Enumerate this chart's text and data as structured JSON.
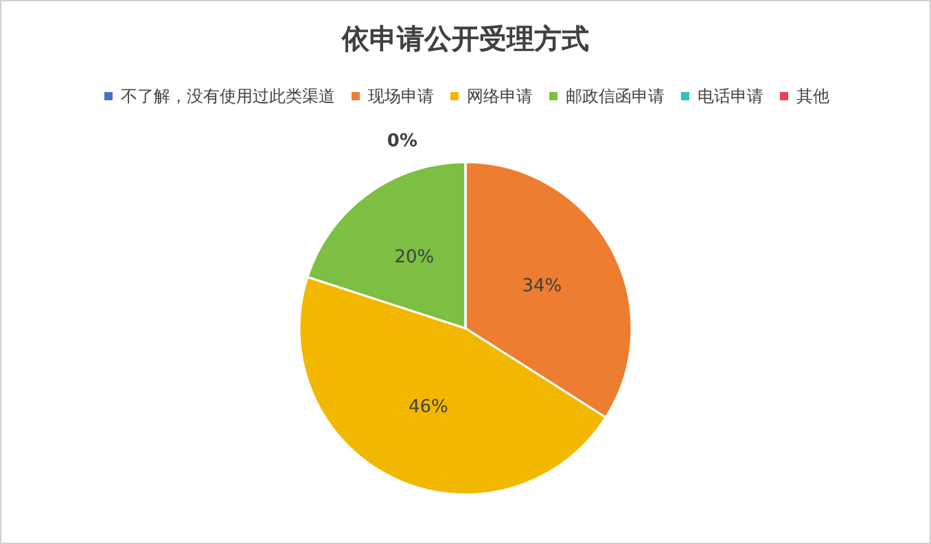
{
  "chart_data": {
    "type": "pie",
    "title": "依申请公开受理方式",
    "categories": [
      "不了解，没有使用过此类渠道",
      "现场申请",
      "网络申请",
      "邮政信函申请",
      "电话申请",
      "其他"
    ],
    "values": [
      0,
      34,
      46,
      20,
      0,
      0
    ],
    "colors": [
      "#4472c4",
      "#ed7d31",
      "#f2b800",
      "#7cbf42",
      "#2fc2b8",
      "#e8405a"
    ],
    "value_labels": [
      "0%",
      "34%",
      "46%",
      "20%",
      null,
      null
    ],
    "legend": "top"
  }
}
